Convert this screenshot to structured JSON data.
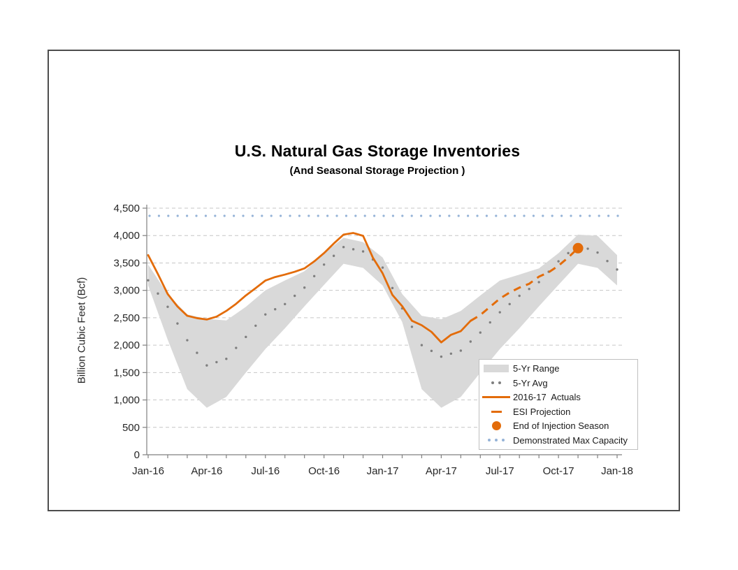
{
  "chart_data": {
    "type": "line",
    "title": "U.S. Natural Gas Storage Inventories",
    "subtitle": "(And Seasonal Storage Projection )",
    "ylabel": "Billion Cubic Feet (Bcf)",
    "xlabel": "",
    "ylim": [
      0,
      4500
    ],
    "y_ticks": [
      0,
      500,
      1000,
      1500,
      2000,
      2500,
      3000,
      3500,
      4000,
      4500
    ],
    "x_tick_labels": [
      "Jan-16",
      "Apr-16",
      "Jul-16",
      "Oct-16",
      "Jan-17",
      "Apr-17",
      "Jul-17",
      "Oct-17",
      "Jan-18"
    ],
    "x_range_months": [
      0,
      24
    ],
    "grid": "horizontal dashed",
    "legend_position": "inside-lower-right",
    "colors": {
      "actuals_orange": "#e36c0a",
      "range_gray": "#d9d9d9",
      "avg_gray": "#7f7f7f",
      "capacity_blue": "#95b3d7",
      "gridline": "#c6c6c6",
      "axis": "#808080",
      "tick_text": "#262626"
    },
    "series": [
      {
        "name": "5-Yr Range",
        "type": "band",
        "color": "#d9d9d9",
        "months": [
          0,
          1,
          2,
          3,
          4,
          5,
          6,
          7,
          8,
          9,
          10,
          11,
          12,
          13,
          14,
          15,
          16,
          17,
          18,
          19,
          20,
          21,
          22,
          23,
          24
        ],
        "high": [
          3470,
          2930,
          2560,
          2480,
          2450,
          2700,
          3000,
          3180,
          3350,
          3680,
          3960,
          3880,
          3600,
          2934,
          2536,
          2473,
          2625,
          2907,
          3179,
          3288,
          3401,
          3680,
          4017,
          3995,
          3643
        ],
        "low": [
          3089,
          2100,
          1196,
          857,
          1055,
          1499,
          1929,
          2307,
          2709,
          3100,
          3485,
          3410,
          3089,
          2423,
          1196,
          857,
          1055,
          1499,
          1929,
          2307,
          2709,
          3100,
          3485,
          3410,
          3089
        ]
      },
      {
        "name": "5-Yr Avg",
        "type": "dotted",
        "color": "#7f7f7f",
        "months": [
          0,
          1,
          2,
          3,
          4,
          5,
          6,
          7,
          8,
          9,
          10,
          11,
          12,
          13,
          14,
          15,
          16,
          17,
          18,
          19,
          20,
          21,
          22,
          23,
          24
        ],
        "values": [
          3183,
          2700,
          2090,
          1630,
          1750,
          2150,
          2560,
          2750,
          3050,
          3470,
          3790,
          3710,
          3415,
          2670,
          2000,
          1790,
          1900,
          2230,
          2600,
          2900,
          3150,
          3530,
          3830,
          3690,
          3380
        ]
      },
      {
        "name": "2016-17 Actuals",
        "type": "line",
        "color": "#e36c0a",
        "months": [
          0,
          0.5,
          1,
          1.5,
          2,
          2.5,
          3,
          3.5,
          4,
          4.5,
          5,
          5.5,
          6,
          6.5,
          7,
          7.5,
          8,
          8.5,
          9,
          9.5,
          10,
          10.5,
          11,
          11.5,
          12,
          12.5,
          13,
          13.5,
          14,
          14.5,
          15,
          15.5,
          16,
          16.5
        ],
        "values": [
          3643,
          3297,
          2934,
          2706,
          2536,
          2493,
          2468,
          2520,
          2625,
          2754,
          2907,
          3041,
          3179,
          3243,
          3288,
          3339,
          3401,
          3529,
          3680,
          3855,
          4017,
          4047,
          3995,
          3597,
          3311,
          2917,
          2711,
          2445,
          2363,
          2242,
          2051,
          2189,
          2256,
          2444
        ]
      },
      {
        "name": "ESI Projection",
        "type": "dashed",
        "color": "#e36c0a",
        "months": [
          16.5,
          17,
          17.5,
          18,
          18.5,
          19,
          19.5,
          20,
          20.5,
          21,
          21.5,
          22
        ],
        "values": [
          2444,
          2550,
          2700,
          2850,
          2960,
          3050,
          3120,
          3250,
          3330,
          3450,
          3600,
          3770
        ]
      },
      {
        "name": "End of Injection Season",
        "type": "point",
        "color": "#e36c0a",
        "month": 22,
        "value": 3770
      },
      {
        "name": "Demonstrated Max Capacity",
        "type": "dotted-h",
        "color": "#95b3d7",
        "value": 4360
      }
    ]
  },
  "legend": {
    "items": [
      {
        "label": "5-Yr Range",
        "swatch": "band",
        "color": "#d9d9d9"
      },
      {
        "label": "5-Yr Avg",
        "swatch": "dots",
        "dots": 2,
        "color": "#7f7f7f"
      },
      {
        "label": "2016-17  Actuals",
        "swatch": "line",
        "color": "#e36c0a"
      },
      {
        "label": "ESI Projection",
        "swatch": "dash",
        "color": "#e36c0a"
      },
      {
        "label": "End of Injection Season",
        "swatch": "point",
        "color": "#e36c0a"
      },
      {
        "label": "Demonstrated Max Capacity",
        "swatch": "dots",
        "dots": 3,
        "color": "#95b3d7"
      }
    ]
  }
}
